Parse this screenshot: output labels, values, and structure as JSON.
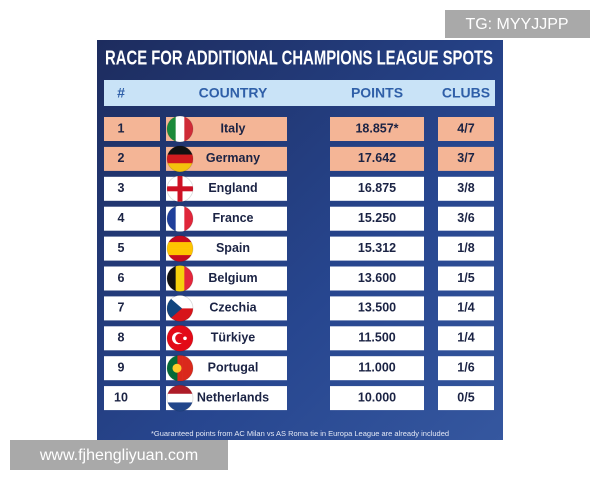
{
  "title": "RACE FOR ADDITIONAL CHAMPIONS LEAGUE SPOTS",
  "table": {
    "header": [
      "#",
      "COUNTRY",
      "POINTS",
      "CLUBS"
    ],
    "rows": [
      [
        "1",
        "Italy",
        "18.857*",
        "4/7"
      ],
      [
        "2",
        "Germany",
        "17.642",
        "3/7"
      ],
      [
        "3",
        "England",
        "16.875",
        "3/8"
      ],
      [
        "4",
        "France",
        "15.250",
        "3/6"
      ],
      [
        "5",
        "Spain",
        "15.312",
        "1/8"
      ],
      [
        "6",
        "Belgium",
        "13.600",
        "1/5"
      ],
      [
        "7",
        "Czechia",
        "13.500",
        "1/4"
      ],
      [
        "8",
        "Türkiye",
        "11.500",
        "1/4"
      ],
      [
        "9",
        "Portugal",
        "11.000",
        "1/6"
      ],
      [
        "10",
        "Netherlands",
        "10.000",
        "0/5"
      ]
    ]
  },
  "footnote": "*Guaranteed points from AC Milan vs AS Roma tie in Europa League are already included",
  "watermarks": [
    "TG: MYYJJPP",
    "www.fjhengliyuan.com"
  ]
}
